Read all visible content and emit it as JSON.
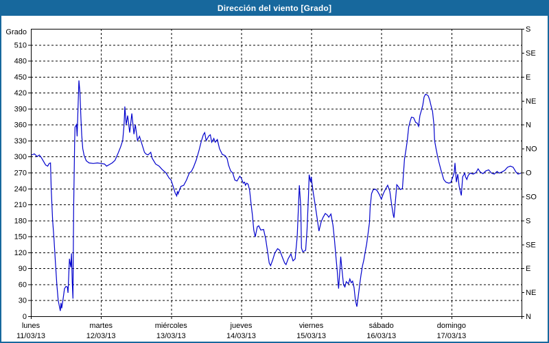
{
  "header": {
    "title": "Dirección del viento [Grado]"
  },
  "colors": {
    "accent": "#17689D",
    "line": "#0000CC",
    "grid": "#000000",
    "background": "#FFFFFF",
    "title_text": "#FFFFFF"
  },
  "chart_data": {
    "type": "line",
    "title": "Dirección del viento [Grado]",
    "ylabel": "Grado",
    "xlabel": "",
    "ylim": [
      0,
      540
    ],
    "grid": true,
    "y_axis": {
      "min": 0,
      "max": 540,
      "tick_step": 30,
      "max_labeled": 510,
      "unit": "Grado"
    },
    "right_axis": {
      "tick_step": 45,
      "labels_bottom_to_top": [
        "N",
        "NE",
        "E",
        "SE",
        "S",
        "SO",
        "O",
        "NO",
        "N",
        "NE",
        "E",
        "SE",
        "S"
      ]
    },
    "x_axis": {
      "span_days": 7,
      "days": [
        {
          "name": "lunes",
          "date": "11/03/13"
        },
        {
          "name": "martes",
          "date": "12/03/13"
        },
        {
          "name": "miércoles",
          "date": "13/03/13"
        },
        {
          "name": "jueves",
          "date": "14/03/13"
        },
        {
          "name": "viernes",
          "date": "15/03/13"
        },
        {
          "name": "sábado",
          "date": "16/03/13"
        },
        {
          "name": "domingo",
          "date": "17/03/13"
        }
      ]
    },
    "series": [
      {
        "name": "Dirección del viento",
        "color": "#0000CC",
        "points": [
          [
            0.01,
            303
          ],
          [
            0.05,
            305
          ],
          [
            0.09,
            300
          ],
          [
            0.12,
            303
          ],
          [
            0.15,
            298
          ],
          [
            0.18,
            291
          ],
          [
            0.21,
            284
          ],
          [
            0.24,
            282
          ],
          [
            0.26,
            287
          ],
          [
            0.28,
            288
          ],
          [
            0.29,
            240
          ],
          [
            0.31,
            180
          ],
          [
            0.33,
            145
          ],
          [
            0.35,
            100
          ],
          [
            0.37,
            60
          ],
          [
            0.39,
            30
          ],
          [
            0.42,
            10
          ],
          [
            0.43,
            25
          ],
          [
            0.44,
            15
          ],
          [
            0.46,
            33
          ],
          [
            0.48,
            52
          ],
          [
            0.5,
            56
          ],
          [
            0.52,
            55
          ],
          [
            0.53,
            44
          ],
          [
            0.55,
            108
          ],
          [
            0.57,
            92
          ],
          [
            0.58,
            118
          ],
          [
            0.59,
            63
          ],
          [
            0.6,
            33
          ],
          [
            0.61,
            200
          ],
          [
            0.625,
            330
          ],
          [
            0.63,
            355
          ],
          [
            0.65,
            360
          ],
          [
            0.66,
            338
          ],
          [
            0.675,
            400
          ],
          [
            0.685,
            443
          ],
          [
            0.7,
            420
          ],
          [
            0.715,
            370
          ],
          [
            0.725,
            340
          ],
          [
            0.74,
            315
          ],
          [
            0.76,
            302
          ],
          [
            0.79,
            292
          ],
          [
            0.83,
            288
          ],
          [
            0.89,
            287
          ],
          [
            0.95,
            288
          ],
          [
            1.0,
            287
          ],
          [
            1.05,
            286
          ],
          [
            1.08,
            282
          ],
          [
            1.12,
            285
          ],
          [
            1.16,
            288
          ],
          [
            1.2,
            293
          ],
          [
            1.24,
            305
          ],
          [
            1.28,
            318
          ],
          [
            1.31,
            330
          ],
          [
            1.33,
            360
          ],
          [
            1.34,
            394
          ],
          [
            1.36,
            360
          ],
          [
            1.38,
            377
          ],
          [
            1.41,
            345
          ],
          [
            1.44,
            381
          ],
          [
            1.47,
            342
          ],
          [
            1.49,
            360
          ],
          [
            1.52,
            330
          ],
          [
            1.55,
            338
          ],
          [
            1.59,
            321
          ],
          [
            1.62,
            308
          ],
          [
            1.64,
            305
          ],
          [
            1.67,
            303
          ],
          [
            1.71,
            308
          ],
          [
            1.73,
            297
          ],
          [
            1.78,
            286
          ],
          [
            1.83,
            282
          ],
          [
            1.87,
            276
          ],
          [
            1.93,
            269
          ],
          [
            1.97,
            260
          ],
          [
            2.0,
            256
          ],
          [
            2.03,
            244
          ],
          [
            2.06,
            231
          ],
          [
            2.08,
            226
          ],
          [
            2.09,
            235
          ],
          [
            2.1,
            230
          ],
          [
            2.14,
            244
          ],
          [
            2.18,
            246
          ],
          [
            2.22,
            256
          ],
          [
            2.26,
            269
          ],
          [
            2.29,
            272
          ],
          [
            2.32,
            280
          ],
          [
            2.36,
            294
          ],
          [
            2.4,
            312
          ],
          [
            2.43,
            328
          ],
          [
            2.46,
            341
          ],
          [
            2.48,
            345
          ],
          [
            2.5,
            330
          ],
          [
            2.54,
            339
          ],
          [
            2.56,
            341
          ],
          [
            2.58,
            327
          ],
          [
            2.61,
            334
          ],
          [
            2.63,
            327
          ],
          [
            2.66,
            332
          ],
          [
            2.69,
            315
          ],
          [
            2.73,
            304
          ],
          [
            2.77,
            302
          ],
          [
            2.8,
            296
          ],
          [
            2.82,
            284
          ],
          [
            2.85,
            273
          ],
          [
            2.88,
            269
          ],
          [
            2.91,
            256
          ],
          [
            2.94,
            254
          ],
          [
            2.98,
            263
          ],
          [
            3.0,
            260
          ],
          [
            3.03,
            250
          ],
          [
            3.05,
            252
          ],
          [
            3.06,
            246
          ],
          [
            3.08,
            250
          ],
          [
            3.1,
            248
          ],
          [
            3.12,
            237
          ],
          [
            3.14,
            213
          ],
          [
            3.16,
            190
          ],
          [
            3.18,
            162
          ],
          [
            3.2,
            149
          ],
          [
            3.23,
            168
          ],
          [
            3.25,
            170
          ],
          [
            3.28,
            162
          ],
          [
            3.32,
            163
          ],
          [
            3.35,
            145
          ],
          [
            3.38,
            119
          ],
          [
            3.4,
            100
          ],
          [
            3.42,
            95
          ],
          [
            3.45,
            106
          ],
          [
            3.48,
            119
          ],
          [
            3.52,
            127
          ],
          [
            3.55,
            124
          ],
          [
            3.59,
            110
          ],
          [
            3.62,
            100
          ],
          [
            3.64,
            97
          ],
          [
            3.67,
            108
          ],
          [
            3.71,
            117
          ],
          [
            3.74,
            104
          ],
          [
            3.77,
            108
          ],
          [
            3.8,
            150
          ],
          [
            3.83,
            246
          ],
          [
            3.85,
            205
          ],
          [
            3.86,
            128
          ],
          [
            3.88,
            121
          ],
          [
            3.92,
            124
          ],
          [
            3.94,
            162
          ],
          [
            3.96,
            226
          ],
          [
            3.97,
            266
          ],
          [
            3.99,
            252
          ],
          [
            4.0,
            262
          ],
          [
            4.01,
            250
          ],
          [
            4.03,
            231
          ],
          [
            4.05,
            214
          ],
          [
            4.08,
            188
          ],
          [
            4.11,
            160
          ],
          [
            4.14,
            177
          ],
          [
            4.17,
            186
          ],
          [
            4.2,
            193
          ],
          [
            4.23,
            190
          ],
          [
            4.25,
            186
          ],
          [
            4.28,
            192
          ],
          [
            4.31,
            171
          ],
          [
            4.33,
            145
          ],
          [
            4.35,
            115
          ],
          [
            4.37,
            85
          ],
          [
            4.38,
            67
          ],
          [
            4.39,
            52
          ],
          [
            4.41,
            89
          ],
          [
            4.42,
            112
          ],
          [
            4.44,
            85
          ],
          [
            4.46,
            59
          ],
          [
            4.48,
            55
          ],
          [
            4.5,
            65
          ],
          [
            4.53,
            61
          ],
          [
            4.55,
            70
          ],
          [
            4.57,
            63
          ],
          [
            4.59,
            66
          ],
          [
            4.61,
            54
          ],
          [
            4.63,
            30
          ],
          [
            4.65,
            18
          ],
          [
            4.67,
            37
          ],
          [
            4.69,
            59
          ],
          [
            4.71,
            78
          ],
          [
            4.73,
            94
          ],
          [
            4.75,
            106
          ],
          [
            4.77,
            121
          ],
          [
            4.79,
            136
          ],
          [
            4.81,
            155
          ],
          [
            4.83,
            176
          ],
          [
            4.84,
            205
          ],
          [
            4.86,
            230
          ],
          [
            4.88,
            237
          ],
          [
            4.91,
            239
          ],
          [
            4.94,
            236
          ],
          [
            4.97,
            229
          ],
          [
            5.0,
            220
          ],
          [
            5.03,
            231
          ],
          [
            5.06,
            239
          ],
          [
            5.09,
            246
          ],
          [
            5.12,
            235
          ],
          [
            5.15,
            207
          ],
          [
            5.17,
            190
          ],
          [
            5.18,
            185
          ],
          [
            5.2,
            215
          ],
          [
            5.22,
            247
          ],
          [
            5.24,
            244
          ],
          [
            5.27,
            238
          ],
          [
            5.3,
            240
          ],
          [
            5.31,
            258
          ],
          [
            5.33,
            295
          ],
          [
            5.35,
            312
          ],
          [
            5.37,
            330
          ],
          [
            5.39,
            355
          ],
          [
            5.41,
            366
          ],
          [
            5.43,
            374
          ],
          [
            5.46,
            373
          ],
          [
            5.49,
            364
          ],
          [
            5.51,
            363
          ],
          [
            5.53,
            357
          ],
          [
            5.55,
            377
          ],
          [
            5.57,
            386
          ],
          [
            5.59,
            396
          ],
          [
            5.61,
            412
          ],
          [
            5.63,
            417
          ],
          [
            5.65,
            416
          ],
          [
            5.67,
            414
          ],
          [
            5.69,
            406
          ],
          [
            5.71,
            395
          ],
          [
            5.73,
            385
          ],
          [
            5.75,
            360
          ],
          [
            5.76,
            330
          ],
          [
            5.78,
            315
          ],
          [
            5.8,
            302
          ],
          [
            5.82,
            290
          ],
          [
            5.85,
            275
          ],
          [
            5.87,
            266
          ],
          [
            5.89,
            257
          ],
          [
            5.92,
            252
          ],
          [
            5.96,
            250
          ],
          [
            5.99,
            251
          ],
          [
            6.02,
            262
          ],
          [
            6.04,
            270
          ],
          [
            6.05,
            288
          ],
          [
            6.07,
            252
          ],
          [
            6.09,
            267
          ],
          [
            6.11,
            244
          ],
          [
            6.14,
            227
          ],
          [
            6.16,
            262
          ],
          [
            6.19,
            269
          ],
          [
            6.2,
            262
          ],
          [
            6.22,
            257
          ],
          [
            6.24,
            265
          ],
          [
            6.27,
            269
          ],
          [
            6.31,
            267
          ],
          [
            6.35,
            270
          ],
          [
            6.38,
            277
          ],
          [
            6.41,
            271
          ],
          [
            6.45,
            268
          ],
          [
            6.49,
            273
          ],
          [
            6.53,
            275
          ],
          [
            6.57,
            269
          ],
          [
            6.61,
            267
          ],
          [
            6.65,
            272
          ],
          [
            6.68,
            269
          ],
          [
            6.72,
            271
          ],
          [
            6.76,
            274
          ],
          [
            6.8,
            280
          ],
          [
            6.84,
            282
          ],
          [
            6.88,
            280
          ],
          [
            6.92,
            271
          ],
          [
            6.95,
            267
          ],
          [
            6.99,
            269
          ]
        ]
      }
    ]
  }
}
